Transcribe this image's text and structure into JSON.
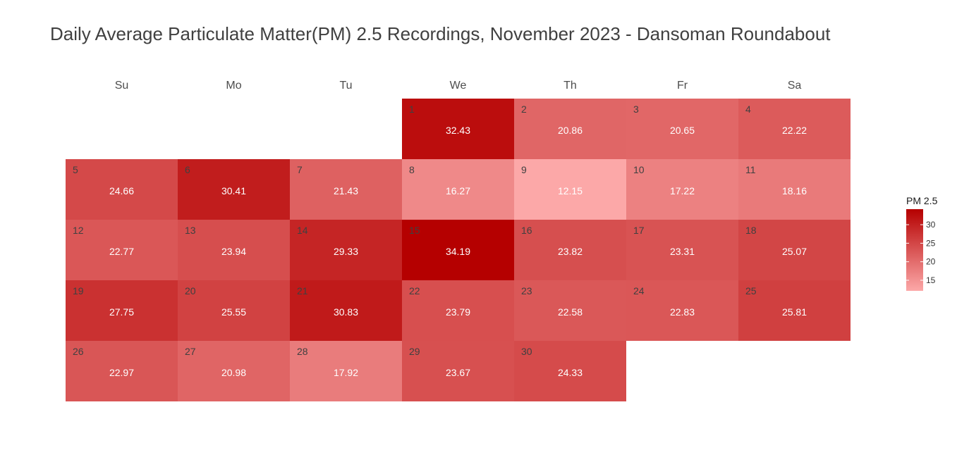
{
  "chart_data": {
    "type": "heatmap",
    "title": "Daily Average Particulate Matter(PM) 2.5 Recordings, November 2023 - Dansoman Roundabout",
    "weekdays": [
      "Su",
      "Mo",
      "Tu",
      "We",
      "Th",
      "Fr",
      "Sa"
    ],
    "first_weekday_index": 3,
    "days": [
      {
        "day": "1",
        "value": 32.43
      },
      {
        "day": "2",
        "value": 20.86
      },
      {
        "day": "3",
        "value": 20.65
      },
      {
        "day": "4",
        "value": 22.22
      },
      {
        "day": "5",
        "value": 24.66
      },
      {
        "day": "6",
        "value": 30.41
      },
      {
        "day": "7",
        "value": 21.43
      },
      {
        "day": "8",
        "value": 16.27
      },
      {
        "day": "9",
        "value": 12.15
      },
      {
        "day": "10",
        "value": 17.22
      },
      {
        "day": "11",
        "value": 18.16
      },
      {
        "day": "12",
        "value": 22.77
      },
      {
        "day": "13",
        "value": 23.94
      },
      {
        "day": "14",
        "value": 29.33
      },
      {
        "day": "15",
        "value": 34.19
      },
      {
        "day": "16",
        "value": 23.82
      },
      {
        "day": "17",
        "value": 23.31
      },
      {
        "day": "18",
        "value": 25.07
      },
      {
        "day": "19",
        "value": 27.75
      },
      {
        "day": "20",
        "value": 25.55
      },
      {
        "day": "21",
        "value": 30.83
      },
      {
        "day": "22",
        "value": 23.79
      },
      {
        "day": "23",
        "value": 22.58
      },
      {
        "day": "24",
        "value": 22.83
      },
      {
        "day": "25",
        "value": 25.81
      },
      {
        "day": "26",
        "value": 22.97
      },
      {
        "day": "27",
        "value": 20.98
      },
      {
        "day": "28",
        "value": 17.92
      },
      {
        "day": "29",
        "value": 23.67
      },
      {
        "day": "30",
        "value": 24.33
      }
    ],
    "legend": {
      "title": "PM 2.5",
      "ticks": [
        15,
        20,
        25,
        30
      ],
      "range": [
        12.15,
        34.19
      ],
      "low_color": "#fca8a8",
      "high_color": "#b50000"
    }
  }
}
